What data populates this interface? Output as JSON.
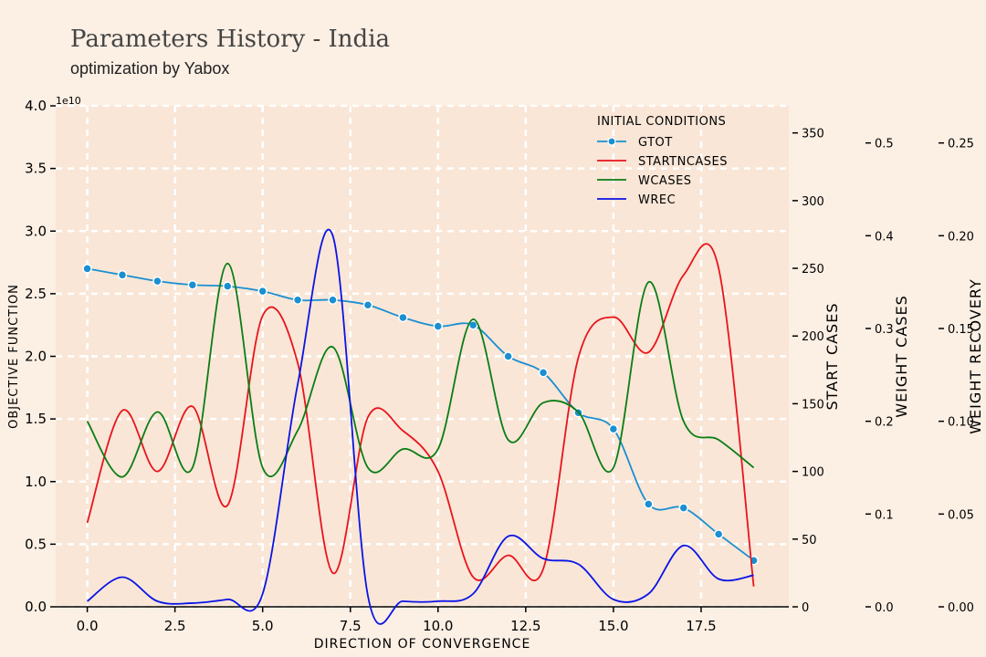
{
  "header": {
    "title": "Parameters History - India",
    "subtitle": "optimization by Yabox"
  },
  "chart_data": {
    "type": "line",
    "xlabel": "DIRECTION OF CONVERGENCE",
    "x_ticks": [
      "0.0",
      "2.5",
      "5.0",
      "7.5",
      "10.0",
      "12.5",
      "15.0",
      "17.5"
    ],
    "xlim": [
      -0.9,
      20
    ],
    "axes": [
      {
        "key": "objective",
        "label": "OBJECTIVE FUNCTION",
        "exponent": "1e10",
        "ylim": [
          0,
          4.0
        ],
        "ticks": [
          "0.0",
          "0.5",
          "1.0",
          "1.5",
          "2.0",
          "2.5",
          "3.0",
          "3.5",
          "4.0"
        ]
      },
      {
        "key": "start",
        "label": "START CASES",
        "ylim": [
          0,
          370
        ],
        "ticks": [
          "0",
          "50",
          "100",
          "150",
          "200",
          "250",
          "300",
          "350"
        ]
      },
      {
        "key": "wcases",
        "label": "WEIGHT CASES",
        "ylim": [
          0,
          0.54
        ],
        "ticks": [
          "0.0",
          "0.1",
          "0.2",
          "0.3",
          "0.4",
          "0.5"
        ]
      },
      {
        "key": "wrec",
        "label": "WEIGHT RECOVERY",
        "ylim": [
          0,
          0.27
        ],
        "ticks": [
          "0.00",
          "0.05",
          "0.10",
          "0.15",
          "0.20",
          "0.25"
        ]
      }
    ],
    "legend": {
      "title": "INITIAL CONDITIONS",
      "placement": "top-right",
      "entries": [
        "GTOT",
        "STARTNCASES",
        "WCASES",
        "WREC"
      ]
    },
    "grid": true,
    "series": [
      {
        "name": "GTOT",
        "axis": "objective",
        "color": "#1a8fd1",
        "marker": true,
        "x": [
          0,
          1,
          2,
          3,
          4,
          5,
          6,
          7,
          8,
          9,
          10,
          11,
          12,
          13,
          14,
          15,
          16,
          17,
          18,
          19
        ],
        "values": [
          2.7,
          2.65,
          2.6,
          2.57,
          2.56,
          2.52,
          2.45,
          2.45,
          2.41,
          2.31,
          2.24,
          2.25,
          2.0,
          1.87,
          1.55,
          1.42,
          0.82,
          0.79,
          0.58,
          0.37
        ]
      },
      {
        "name": "STARTNCASES",
        "axis": "start",
        "color": "#e8141c",
        "marker": false,
        "x": [
          0,
          1,
          2,
          3,
          4,
          5,
          6,
          7,
          8,
          9,
          10,
          11,
          12,
          13,
          14,
          15,
          16,
          17,
          18,
          19
        ],
        "values": [
          62,
          145,
          100,
          148,
          75,
          215,
          180,
          25,
          140,
          130,
          100,
          22,
          38,
          28,
          184,
          214,
          188,
          245,
          250,
          15
        ]
      },
      {
        "name": "WCASES",
        "axis": "wcases",
        "color": "#0a7d14",
        "marker": false,
        "x": [
          0,
          1,
          2,
          3,
          4,
          5,
          6,
          7,
          8,
          9,
          10,
          11,
          12,
          13,
          14,
          15,
          16,
          17,
          18,
          19
        ],
        "values": [
          0.2,
          0.14,
          0.21,
          0.15,
          0.37,
          0.15,
          0.19,
          0.28,
          0.15,
          0.17,
          0.17,
          0.31,
          0.18,
          0.22,
          0.21,
          0.15,
          0.35,
          0.2,
          0.18,
          0.15
        ]
      },
      {
        "name": "WREC",
        "axis": "wrec",
        "color": "#0a14e6",
        "marker": false,
        "x": [
          0,
          1,
          2,
          3,
          4,
          5,
          6,
          7,
          8,
          9,
          10,
          11,
          12,
          13,
          14,
          15,
          16,
          17,
          18,
          19
        ],
        "values": [
          0.003,
          0.016,
          0.003,
          0.002,
          0.004,
          0.007,
          0.12,
          0.2,
          0.006,
          0.003,
          0.003,
          0.007,
          0.038,
          0.026,
          0.023,
          0.004,
          0.007,
          0.033,
          0.015,
          0.017
        ]
      }
    ]
  }
}
